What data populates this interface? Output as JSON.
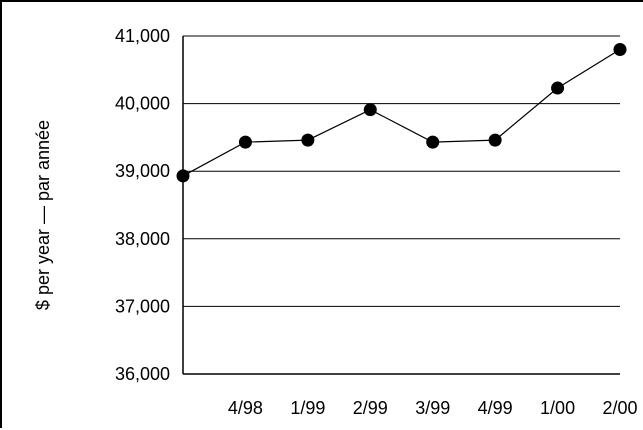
{
  "chart_data": {
    "type": "line",
    "title": "",
    "xlabel": "",
    "ylabel": "$ per year — par année",
    "categories": [
      "",
      "4/98",
      "1/99",
      "2/99",
      "3/99",
      "4/99",
      "1/00",
      "2/00"
    ],
    "series": [
      {
        "values": [
          38930,
          39430,
          39460,
          39910,
          39430,
          39460,
          40230,
          40800
        ]
      }
    ],
    "ylim": [
      36000,
      41000
    ],
    "yticks": [
      36000,
      37000,
      38000,
      39000,
      40000,
      41000
    ],
    "ytick_labels": [
      "36,000",
      "37,000",
      "38,000",
      "39,000",
      "40,000",
      "41,000"
    ],
    "grid": true,
    "legend": "none",
    "colors": {
      "line": "#000000",
      "marker": "#000000",
      "grid": "#000000",
      "background": "#ffffff"
    }
  }
}
